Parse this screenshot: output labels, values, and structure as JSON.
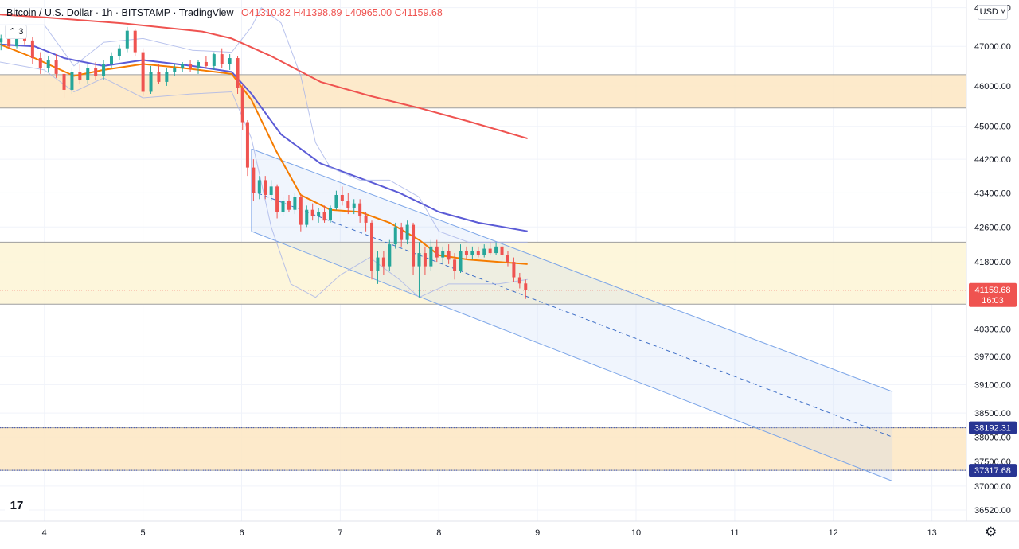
{
  "header": {
    "title": "Bitcoin / U.S. Dollar · 1h · BITSTAMP · TradingView",
    "open": "O41310.82",
    "high": "H41398.89",
    "low": "L40965.00",
    "close": "C41159.68"
  },
  "indicators_toggle": "3",
  "currency_button": "USD",
  "logo_text": "17",
  "settings_icon": "gear-icon",
  "colors": {
    "up": "#26a69a",
    "down": "#ef5350",
    "ma_fast": "#f57c00",
    "ma_mid": "#5b5bd6",
    "ma_slow": "#ef5350",
    "bands": "#a7b4e8",
    "channel": "#7da6e8",
    "zone_orange": "#fde6c2",
    "zone_yellow": "#fdf5d5",
    "level_line": "#3f51b5"
  },
  "chart_data": {
    "type": "candlestick",
    "title": "Bitcoin / U.S. Dollar · 1h · BITSTAMP · TradingView",
    "xlabel": "",
    "ylabel": "",
    "grid": true,
    "log_scale": true,
    "x_ticks": [
      "4",
      "5",
      "6",
      "7",
      "8",
      "9",
      "10",
      "11",
      "12",
      "13"
    ],
    "y_ticks": [
      48000,
      47000,
      46000,
      45000,
      44200,
      43400,
      42600,
      41800,
      40300,
      39700,
      39100,
      38500,
      38000,
      37500,
      37000,
      36520
    ],
    "y_tick_labels": [
      "48000.00",
      "47000.00",
      "46000.00",
      "45000.00",
      "44200.00",
      "43400.00",
      "42600.00",
      "41800.00",
      "40300.00",
      "39700.00",
      "39100.00",
      "38500.00",
      "38000.00",
      "37500.00",
      "37000.00",
      "36520.00"
    ],
    "ylim": [
      36300,
      48200
    ],
    "xlim": [
      3.55,
      13.35
    ],
    "last_price": {
      "value": 41159.68,
      "label": "41159.68",
      "countdown": "16:03"
    },
    "price_labels": [
      {
        "value": 38192.31,
        "label": "38192.31"
      },
      {
        "value": 37317.68,
        "label": "37317.68"
      }
    ],
    "zones": [
      {
        "from": 45450,
        "to": 46280,
        "color": "orange"
      },
      {
        "from": 40850,
        "to": 42250,
        "color": "yellow"
      },
      {
        "from": 37317.68,
        "to": 38192.31,
        "color": "orange"
      }
    ],
    "series": [
      {
        "kind": "ma",
        "color": "ma_slow",
        "points": [
          [
            3.55,
            47820
          ],
          [
            4.0,
            47750
          ],
          [
            4.8,
            47590
          ],
          [
            5.6,
            47380
          ],
          [
            5.9,
            47200
          ],
          [
            6.3,
            46750
          ],
          [
            6.8,
            46100
          ],
          [
            7.3,
            45750
          ],
          [
            7.8,
            45450
          ],
          [
            8.3,
            45120
          ],
          [
            8.9,
            44700
          ]
        ]
      },
      {
        "kind": "ma",
        "color": "ma_mid",
        "points": [
          [
            3.55,
            47050
          ],
          [
            3.9,
            47000
          ],
          [
            4.2,
            46700
          ],
          [
            4.6,
            46500
          ],
          [
            5.0,
            46650
          ],
          [
            5.5,
            46500
          ],
          [
            5.9,
            46350
          ],
          [
            6.1,
            45800
          ],
          [
            6.4,
            44800
          ],
          [
            6.8,
            44100
          ],
          [
            7.2,
            43750
          ],
          [
            7.6,
            43400
          ],
          [
            8.0,
            42950
          ],
          [
            8.4,
            42700
          ],
          [
            8.9,
            42500
          ]
        ]
      },
      {
        "kind": "ma",
        "color": "ma_fast",
        "points": [
          [
            3.55,
            47050
          ],
          [
            3.9,
            46700
          ],
          [
            4.3,
            46250
          ],
          [
            4.6,
            46400
          ],
          [
            5.0,
            46550
          ],
          [
            5.4,
            46450
          ],
          [
            5.9,
            46300
          ],
          [
            6.1,
            45650
          ],
          [
            6.35,
            44400
          ],
          [
            6.6,
            43350
          ],
          [
            6.9,
            43000
          ],
          [
            7.2,
            42950
          ],
          [
            7.5,
            42700
          ],
          [
            7.8,
            42300
          ],
          [
            8.0,
            41950
          ],
          [
            8.3,
            41850
          ],
          [
            8.6,
            41800
          ],
          [
            8.9,
            41750
          ]
        ]
      },
      {
        "kind": "band",
        "color": "bands",
        "points": [
          [
            3.55,
            47550
          ],
          [
            4.0,
            47550
          ],
          [
            4.3,
            46500
          ],
          [
            4.6,
            47100
          ],
          [
            5.0,
            47200
          ],
          [
            5.5,
            46900
          ],
          [
            5.9,
            46850
          ],
          [
            6.1,
            47500
          ],
          [
            6.2,
            48000
          ],
          [
            6.4,
            47600
          ],
          [
            6.6,
            46250
          ],
          [
            6.75,
            44600
          ],
          [
            6.9,
            44000
          ],
          [
            7.2,
            43700
          ],
          [
            7.5,
            43700
          ],
          [
            7.8,
            43300
          ],
          [
            8.0,
            42500
          ],
          [
            8.3,
            42250
          ],
          [
            8.6,
            42250
          ],
          [
            8.9,
            42250
          ]
        ]
      },
      {
        "kind": "band",
        "color": "bands",
        "points": [
          [
            3.55,
            46600
          ],
          [
            4.0,
            46400
          ],
          [
            4.3,
            45850
          ],
          [
            4.6,
            46200
          ],
          [
            5.0,
            45700
          ],
          [
            5.5,
            45800
          ],
          [
            5.9,
            45850
          ],
          [
            6.1,
            44700
          ],
          [
            6.3,
            42600
          ],
          [
            6.5,
            41300
          ],
          [
            6.75,
            41000
          ],
          [
            7.0,
            41500
          ],
          [
            7.3,
            41900
          ],
          [
            7.6,
            41400
          ],
          [
            7.8,
            41000
          ],
          [
            8.1,
            41300
          ],
          [
            8.4,
            41300
          ],
          [
            8.6,
            41300
          ],
          [
            8.9,
            41400
          ]
        ]
      }
    ],
    "channel": {
      "upper": [
        [
          6.1,
          44450
        ],
        [
          12.6,
          38950
        ]
      ],
      "lower": [
        [
          6.1,
          42500
        ],
        [
          12.6,
          37100
        ]
      ],
      "mid": [
        [
          6.1,
          43450
        ],
        [
          12.6,
          38000
        ]
      ]
    },
    "candles": [
      [
        3.56,
        47100,
        47300,
        46900,
        47200
      ],
      [
        3.64,
        47200,
        47350,
        46950,
        47000
      ],
      [
        3.72,
        47000,
        47550,
        46950,
        47400
      ],
      [
        3.8,
        47400,
        47500,
        47050,
        47150
      ],
      [
        3.88,
        47150,
        47250,
        46550,
        46700
      ],
      [
        3.96,
        46700,
        46850,
        46300,
        46450
      ],
      [
        4.04,
        46450,
        46750,
        46350,
        46650
      ],
      [
        4.12,
        46650,
        46800,
        46200,
        46300
      ],
      [
        4.2,
        46300,
        46400,
        45700,
        45900
      ],
      [
        4.28,
        45900,
        46450,
        45800,
        46350
      ],
      [
        4.36,
        46350,
        46550,
        46050,
        46150
      ],
      [
        4.44,
        46150,
        46550,
        46050,
        46450
      ],
      [
        4.52,
        46450,
        46600,
        46150,
        46250
      ],
      [
        4.6,
        46250,
        46650,
        46150,
        46550
      ],
      [
        4.68,
        46550,
        46850,
        46450,
        46750
      ],
      [
        4.76,
        46750,
        47050,
        46650,
        46950
      ],
      [
        4.84,
        46950,
        47500,
        46850,
        47400
      ],
      [
        4.92,
        47400,
        47450,
        46750,
        46850
      ],
      [
        5.0,
        46850,
        46950,
        45750,
        45850
      ],
      [
        5.08,
        45850,
        46500,
        45800,
        46350
      ],
      [
        5.16,
        46350,
        46550,
        46050,
        46100
      ],
      [
        5.24,
        46100,
        46450,
        46000,
        46350
      ],
      [
        5.32,
        46350,
        46550,
        46250,
        46450
      ],
      [
        5.4,
        46450,
        46600,
        46350,
        46550
      ],
      [
        5.48,
        46550,
        46650,
        46350,
        46450
      ],
      [
        5.56,
        46450,
        46650,
        46300,
        46600
      ],
      [
        5.64,
        46600,
        46750,
        46450,
        46500
      ],
      [
        5.72,
        46500,
        46850,
        46400,
        46800
      ],
      [
        5.8,
        46800,
        46950,
        46450,
        46550
      ],
      [
        5.88,
        46550,
        46800,
        46400,
        46700
      ],
      [
        5.96,
        46700,
        46750,
        45800,
        45950
      ],
      [
        6.01,
        45950,
        46050,
        44900,
        45100
      ],
      [
        6.06,
        45100,
        45150,
        43800,
        44000
      ],
      [
        6.12,
        44000,
        44200,
        43200,
        43400
      ],
      [
        6.18,
        43400,
        43800,
        43250,
        43700
      ],
      [
        6.24,
        43700,
        43800,
        43250,
        43350
      ],
      [
        6.3,
        43350,
        43700,
        43200,
        43550
      ],
      [
        6.36,
        43550,
        43600,
        42800,
        42950
      ],
      [
        6.42,
        42950,
        43300,
        42850,
        43200
      ],
      [
        6.48,
        43200,
        43350,
        42950,
        43000
      ],
      [
        6.54,
        43000,
        43400,
        42900,
        43300
      ],
      [
        6.6,
        43300,
        43350,
        42500,
        42650
      ],
      [
        6.66,
        42650,
        43100,
        42600,
        43000
      ],
      [
        6.72,
        43000,
        43150,
        42750,
        42850
      ],
      [
        6.78,
        42850,
        43050,
        42700,
        42950
      ],
      [
        6.84,
        42950,
        43100,
        42700,
        42750
      ],
      [
        6.9,
        42750,
        43100,
        42700,
        43050
      ],
      [
        6.96,
        43050,
        43450,
        43000,
        43350
      ],
      [
        7.02,
        43350,
        43550,
        43100,
        43200
      ],
      [
        7.08,
        43200,
        43400,
        42900,
        43050
      ],
      [
        7.14,
        43050,
        43250,
        42900,
        43150
      ],
      [
        7.2,
        43150,
        43250,
        42700,
        42850
      ],
      [
        7.26,
        42850,
        42950,
        42500,
        42700
      ],
      [
        7.32,
        42700,
        42750,
        41400,
        41600
      ],
      [
        7.38,
        41600,
        42050,
        41300,
        41900
      ],
      [
        7.44,
        41900,
        42050,
        41500,
        41700
      ],
      [
        7.5,
        41700,
        42300,
        41600,
        42200
      ],
      [
        7.56,
        42200,
        42700,
        42100,
        42600
      ],
      [
        7.62,
        42600,
        42700,
        42150,
        42300
      ],
      [
        7.68,
        42300,
        42750,
        42200,
        42650
      ],
      [
        7.74,
        42650,
        42700,
        41500,
        41700
      ],
      [
        7.8,
        41700,
        42250,
        41000,
        42000
      ],
      [
        7.86,
        42000,
        42150,
        41500,
        41700
      ],
      [
        7.92,
        41700,
        42300,
        41600,
        42150
      ],
      [
        7.98,
        42150,
        42300,
        41800,
        41900
      ],
      [
        8.04,
        41900,
        42150,
        41750,
        42050
      ],
      [
        8.1,
        42050,
        42200,
        41750,
        41850
      ],
      [
        8.16,
        41850,
        42000,
        41400,
        41600
      ],
      [
        8.22,
        41600,
        42200,
        41550,
        42050
      ],
      [
        8.28,
        42050,
        42150,
        41850,
        41950
      ],
      [
        8.34,
        41950,
        42150,
        41850,
        42050
      ],
      [
        8.4,
        42050,
        42150,
        41900,
        41950
      ],
      [
        8.46,
        41950,
        42200,
        41900,
        42100
      ],
      [
        8.52,
        42100,
        42250,
        41950,
        42000
      ],
      [
        8.58,
        42000,
        42250,
        41950,
        42150
      ],
      [
        8.64,
        42150,
        42250,
        41850,
        41950
      ],
      [
        8.7,
        41950,
        42050,
        41700,
        41800
      ],
      [
        8.76,
        41800,
        41900,
        41350,
        41450
      ],
      [
        8.82,
        41450,
        41550,
        41200,
        41310
      ],
      [
        8.88,
        41310.82,
        41398.89,
        40965.0,
        41159.68
      ]
    ]
  }
}
